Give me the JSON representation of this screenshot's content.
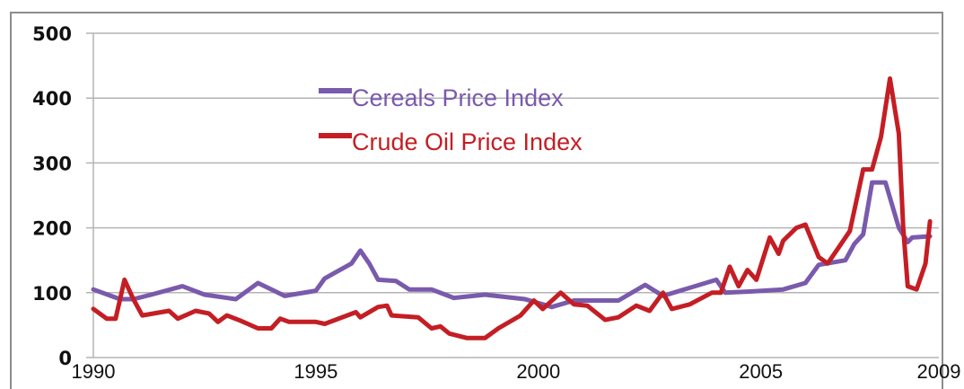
{
  "chart_data": {
    "type": "line",
    "title": "",
    "xlabel": "",
    "ylabel": "",
    "xlim": [
      1990,
      2009
    ],
    "ylim": [
      0,
      500
    ],
    "grid": true,
    "legend_placement": "top-center",
    "x_ticks": [
      "1990",
      "1995",
      "2000",
      "2005",
      "2009"
    ],
    "y_ticks": [
      "0",
      "100",
      "200",
      "300",
      "400",
      "500"
    ],
    "series": [
      {
        "name": "Cereals Price Index",
        "color": "#7a5aac",
        "x": [
          1990.0,
          1990.6,
          1990.9,
          1991.3,
          1992.0,
          1992.5,
          1993.2,
          1993.7,
          1994.3,
          1995.0,
          1995.2,
          1995.8,
          1996.0,
          1996.2,
          1996.4,
          1996.8,
          1997.1,
          1997.6,
          1998.1,
          1998.8,
          1999.7,
          2000.3,
          2000.8,
          2001.8,
          2002.4,
          2002.8,
          2004.0,
          2004.2,
          2004.8,
          2005.5,
          2006.0,
          2006.3,
          2006.9,
          2007.1,
          2007.3,
          2007.5,
          2007.8,
          2008.1,
          2008.3,
          2008.4,
          2008.8
        ],
        "y": [
          105,
          90,
          90,
          97,
          110,
          97,
          90,
          115,
          95,
          103,
          122,
          145,
          165,
          145,
          120,
          118,
          105,
          105,
          92,
          97,
          90,
          78,
          88,
          88,
          112,
          95,
          120,
          100,
          102,
          105,
          115,
          143,
          150,
          175,
          190,
          270,
          270,
          200,
          178,
          185,
          187
        ]
      },
      {
        "name": "Crude Oil Price Index",
        "color": "#c41e24",
        "x": [
          1990.0,
          1990.3,
          1990.5,
          1990.7,
          1990.9,
          1991.1,
          1991.7,
          1991.9,
          1992.3,
          1992.6,
          1992.8,
          1993.0,
          1993.3,
          1993.7,
          1994.0,
          1994.2,
          1994.4,
          1995.0,
          1995.2,
          1995.9,
          1996.0,
          1996.4,
          1996.6,
          1996.7,
          1997.3,
          1997.6,
          1997.8,
          1998.0,
          1998.4,
          1998.8,
          1999.1,
          1999.6,
          1999.9,
          2000.1,
          2000.5,
          2000.8,
          2001.1,
          2001.5,
          2001.8,
          2002.2,
          2002.5,
          2002.8,
          2003.0,
          2003.4,
          2003.9,
          2004.1,
          2004.3,
          2004.5,
          2004.7,
          2004.9,
          2005.2,
          2005.4,
          2005.5,
          2005.8,
          2006.0,
          2006.3,
          2006.5,
          2006.7,
          2007.0,
          2007.3,
          2007.5,
          2007.7,
          2007.9,
          2008.1,
          2008.2,
          2008.3,
          2008.5,
          2008.7,
          2008.8
        ],
        "y": [
          75,
          60,
          60,
          120,
          90,
          65,
          72,
          60,
          72,
          68,
          55,
          65,
          57,
          45,
          45,
          60,
          55,
          55,
          52,
          70,
          62,
          78,
          80,
          65,
          62,
          45,
          48,
          37,
          30,
          30,
          45,
          65,
          88,
          75,
          100,
          82,
          80,
          58,
          62,
          80,
          72,
          100,
          75,
          82,
          100,
          100,
          140,
          110,
          135,
          120,
          185,
          160,
          180,
          200,
          205,
          155,
          145,
          165,
          195,
          290,
          290,
          340,
          430,
          345,
          200,
          110,
          105,
          145,
          210
        ]
      }
    ]
  }
}
